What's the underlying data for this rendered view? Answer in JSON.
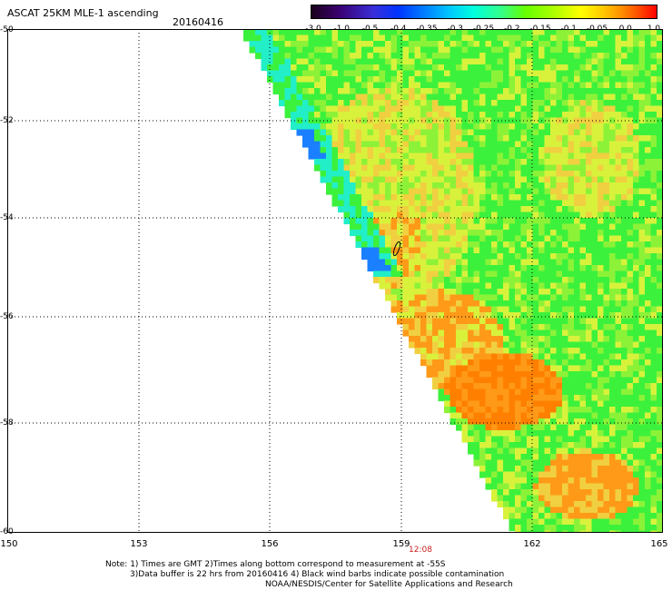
{
  "header": {
    "title": "ASCAT 25KM MLE-1 ascending",
    "date": "20160416"
  },
  "colorbar": {
    "ticks": [
      "-3.0",
      "-1.0",
      "-0.5",
      "-0.4",
      "-0.35",
      "-0.3",
      "-0.25",
      "-0.2",
      "-0.15",
      "-0.1",
      "-0.05",
      "0.0",
      "1.0"
    ],
    "colors": [
      "#1a001a",
      "#3a0070",
      "#3a2fd8",
      "#0033ff",
      "#0080ff",
      "#00c8ff",
      "#00ffdd",
      "#33ff88",
      "#66ff00",
      "#aaff00",
      "#ffff00",
      "#ffc400",
      "#ff8c00",
      "#ff4a00",
      "#ff0000"
    ]
  },
  "axes": {
    "lat_labels": [
      "-50",
      "-52",
      "-54",
      "-56",
      "-58",
      "-60"
    ],
    "lon_labels": [
      "150",
      "153",
      "156",
      "159",
      "162",
      "165"
    ],
    "time_label": "12:08"
  },
  "palette": {
    "cyan": "#22eec8",
    "blue": "#1a80ff",
    "green": "#3cf13c",
    "lime": "#8cf238",
    "yellow": "#d8f23c",
    "gold": "#f0d040",
    "orange": "#ff9a18",
    "darkorange": "#ff8000"
  },
  "notes": {
    "line1": "Note: 1) Times are GMT 2)Times along bottom correspond to measurement at -55S",
    "line2": "3)Data buffer is 22 hrs from 20160416 4) Black wind barbs indicate possible contamination",
    "line3": "NOAA/NESDIS/Center for Satellite Applications and Research"
  }
}
